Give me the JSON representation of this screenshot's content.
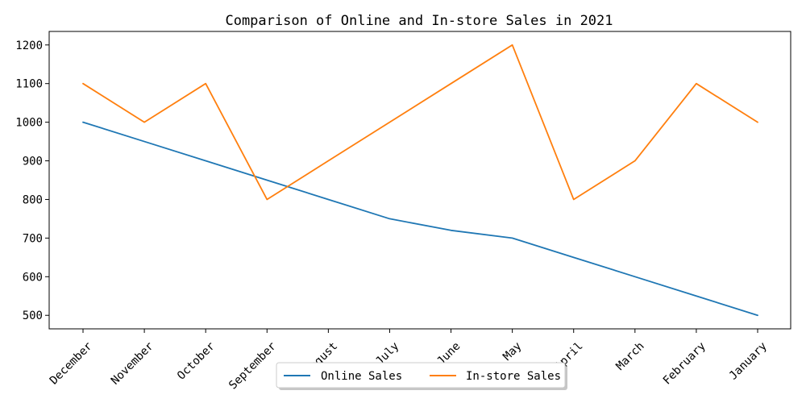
{
  "chart_data": {
    "type": "line",
    "title": "Comparison of Online and In-store Sales in 2021",
    "xlabel": "",
    "ylabel": "",
    "categories": [
      "December",
      "November",
      "October",
      "September",
      "August",
      "July",
      "June",
      "May",
      "April",
      "March",
      "February",
      "January"
    ],
    "series": [
      {
        "name": "Online Sales",
        "color": "#1f77b4",
        "values": [
          1000,
          950,
          900,
          850,
          800,
          750,
          720,
          700,
          650,
          600,
          550,
          500
        ]
      },
      {
        "name": "In-store Sales",
        "color": "#ff7f0e",
        "values": [
          1100,
          1000,
          1100,
          800,
          900,
          1000,
          1100,
          1200,
          800,
          900,
          1100,
          1000
        ]
      }
    ],
    "ylim": [
      465,
      1235
    ],
    "yticks": [
      500,
      600,
      700,
      800,
      900,
      1000,
      1100,
      1200
    ],
    "grid": true,
    "legend_position": "bottom-center"
  }
}
